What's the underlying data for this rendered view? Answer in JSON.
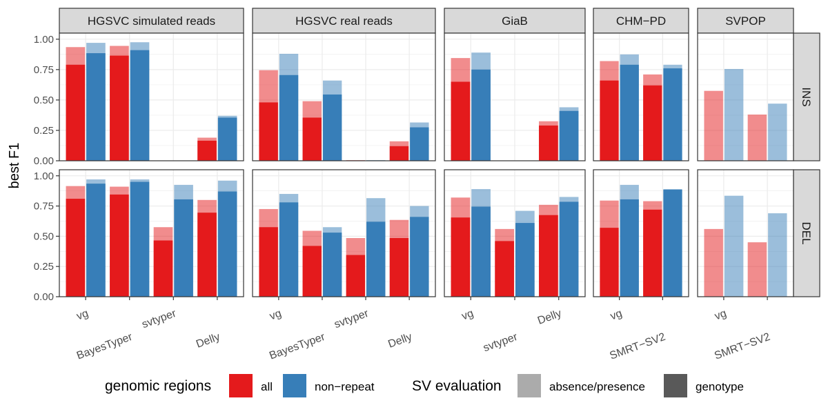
{
  "chart_data": {
    "type": "bar",
    "ylabel": "best F1",
    "ylim": [
      0,
      1.05
    ],
    "yticks": [
      0.0,
      0.25,
      0.5,
      0.75,
      1.0
    ],
    "ytick_labels": [
      "0.00",
      "0.25",
      "0.50",
      "0.75",
      "1.00"
    ],
    "colors": {
      "all": "#E41A1C",
      "non-repeat": "#377EB8",
      "absence_presence_swatch": "#ABABAB",
      "genotype_swatch": "#595959",
      "strip_bg": "#D9D9D9",
      "grid": "#EBEBEB"
    },
    "panels": [
      {
        "name": "HGSVC simulated reads",
        "methods": [
          "vg",
          "BayesTyper",
          "svtyper",
          "Delly"
        ],
        "rows": {
          "INS": {
            "all": {
              "presence": [
                0.935,
                0.945,
                null,
                0.19
              ],
              "genotype": [
                0.79,
                0.865,
                null,
                0.165
              ]
            },
            "non-repeat": {
              "presence": [
                0.97,
                0.975,
                null,
                0.37
              ],
              "genotype": [
                0.885,
                0.91,
                null,
                0.355
              ]
            }
          },
          "DEL": {
            "all": {
              "presence": [
                0.915,
                0.91,
                0.575,
                0.8
              ],
              "genotype": [
                0.81,
                0.845,
                0.465,
                0.695
              ]
            },
            "non-repeat": {
              "presence": [
                0.97,
                0.97,
                0.925,
                0.96
              ],
              "genotype": [
                0.935,
                0.95,
                0.805,
                0.87
              ]
            }
          }
        }
      },
      {
        "name": "HGSVC real reads",
        "methods": [
          "vg",
          "BayesTyper",
          "svtyper",
          "Delly"
        ],
        "rows": {
          "INS": {
            "all": {
              "presence": [
                0.745,
                0.49,
                0.005,
                0.16
              ],
              "genotype": [
                0.48,
                0.355,
                0.0,
                0.12
              ]
            },
            "non-repeat": {
              "presence": [
                0.88,
                0.66,
                0.005,
                0.315
              ],
              "genotype": [
                0.705,
                0.545,
                0.0,
                0.275
              ]
            }
          },
          "DEL": {
            "all": {
              "presence": [
                0.725,
                0.545,
                0.485,
                0.635
              ],
              "genotype": [
                0.575,
                0.42,
                0.345,
                0.485
              ]
            },
            "non-repeat": {
              "presence": [
                0.85,
                0.575,
                0.815,
                0.75
              ],
              "genotype": [
                0.78,
                0.53,
                0.62,
                0.66
              ]
            }
          }
        }
      },
      {
        "name": "GiaB",
        "methods": [
          "vg",
          "svtyper",
          "Delly"
        ],
        "rows": {
          "INS": {
            "all": {
              "presence": [
                0.845,
                null,
                0.325
              ],
              "genotype": [
                0.65,
                null,
                0.29
              ]
            },
            "non-repeat": {
              "presence": [
                0.89,
                null,
                0.44
              ],
              "genotype": [
                0.75,
                null,
                0.41
              ]
            }
          },
          "DEL": {
            "all": {
              "presence": [
                0.82,
                0.56,
                0.76
              ],
              "genotype": [
                0.655,
                0.46,
                0.675
              ]
            },
            "non-repeat": {
              "presence": [
                0.89,
                0.71,
                0.825
              ],
              "genotype": [
                0.745,
                0.61,
                0.785
              ]
            }
          }
        }
      },
      {
        "name": "CHM−PD",
        "methods": [
          "vg",
          "SMRT−SV2"
        ],
        "rows": {
          "INS": {
            "all": {
              "presence": [
                0.82,
                0.71
              ],
              "genotype": [
                0.66,
                0.62
              ]
            },
            "non-repeat": {
              "presence": [
                0.875,
                0.79
              ],
              "genotype": [
                0.79,
                0.76
              ]
            }
          },
          "DEL": {
            "all": {
              "presence": [
                0.795,
                0.79
              ],
              "genotype": [
                0.57,
                0.72
              ]
            },
            "non-repeat": {
              "presence": [
                0.925,
                0.89
              ],
              "genotype": [
                0.805,
                0.885
              ]
            }
          }
        }
      },
      {
        "name": "SVPOP",
        "methods": [
          "vg",
          "SMRT−SV2"
        ],
        "rows": {
          "INS": {
            "all": {
              "presence": [
                0.575,
                0.38
              ],
              "genotype": [
                null,
                null
              ]
            },
            "non-repeat": {
              "presence": [
                0.755,
                0.47
              ],
              "genotype": [
                null,
                null
              ]
            }
          },
          "DEL": {
            "all": {
              "presence": [
                0.56,
                0.45
              ],
              "genotype": [
                null,
                null
              ]
            },
            "non-repeat": {
              "presence": [
                0.835,
                0.69
              ],
              "genotype": [
                null,
                null
              ]
            }
          }
        }
      }
    ],
    "row_labels": [
      "INS",
      "DEL"
    ],
    "legend": {
      "position": "bottom",
      "group1_title": "genomic regions",
      "group1_items": [
        "all",
        "non−repeat"
      ],
      "group2_title": "SV evaluation",
      "group2_items": [
        "absence/presence",
        "genotype"
      ]
    }
  }
}
